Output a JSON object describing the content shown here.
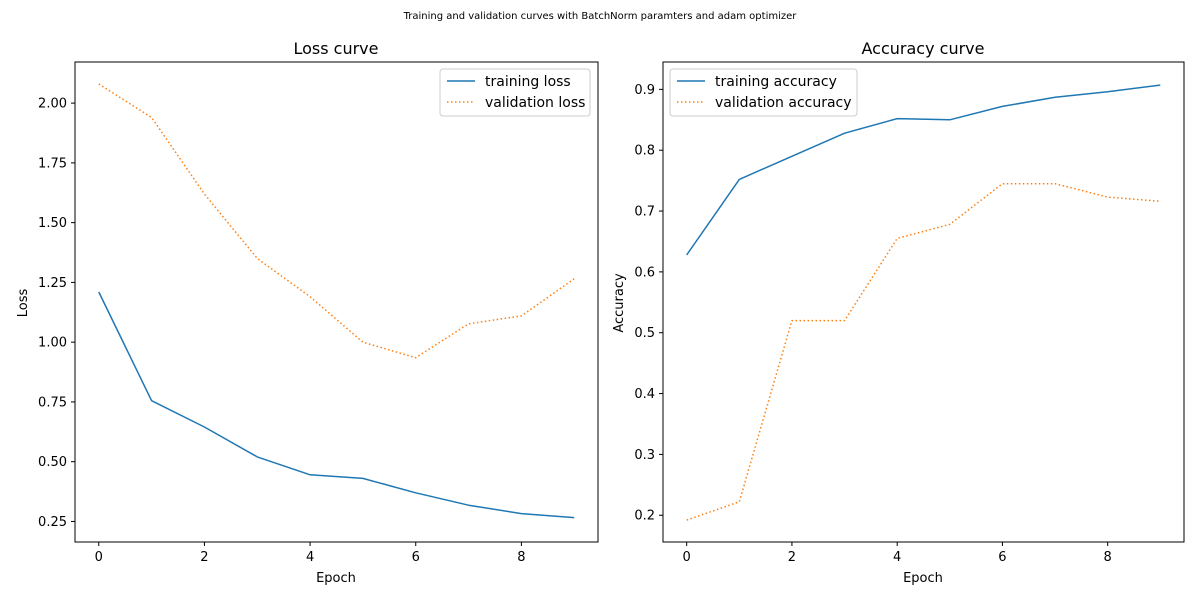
{
  "suptitle": "Training and validation curves with BatchNorm paramters and adam optimizer",
  "colors": {
    "series_0": "#1f77b4",
    "series_1": "#ff7f0e",
    "axes": "#000000",
    "legend_border": "#cccccc"
  },
  "chart_data": [
    {
      "type": "line",
      "title": "Loss curve",
      "xlabel": "Epoch",
      "ylabel": "Loss",
      "x": [
        0,
        1,
        2,
        3,
        4,
        5,
        6,
        7,
        8,
        9
      ],
      "xlim": [
        -0.45,
        9.45
      ],
      "ylim": [
        0.164,
        2.172
      ],
      "xticks": [
        0,
        2,
        4,
        6,
        8
      ],
      "xtick_labels": [
        "0",
        "2",
        "4",
        "6",
        "8"
      ],
      "yticks": [
        0.25,
        0.5,
        0.75,
        1.0,
        1.25,
        1.5,
        1.75,
        2.0
      ],
      "ytick_labels": [
        "0.25",
        "0.50",
        "0.75",
        "1.00",
        "1.25",
        "1.50",
        "1.75",
        "2.00"
      ],
      "grid": false,
      "legend_position": "upper right",
      "series": [
        {
          "name": "training loss",
          "style": "solid",
          "values": [
            1.21,
            0.755,
            0.645,
            0.52,
            0.445,
            0.43,
            0.37,
            0.318,
            0.283,
            0.266
          ]
        },
        {
          "name": "validation loss",
          "style": "dotted",
          "values": [
            2.08,
            1.94,
            1.62,
            1.35,
            1.19,
            1.0,
            0.935,
            1.077,
            1.11,
            1.265
          ]
        }
      ]
    },
    {
      "type": "line",
      "title": "Accuracy curve",
      "xlabel": "Epoch",
      "ylabel": "Accuracy",
      "x": [
        0,
        1,
        2,
        3,
        4,
        5,
        6,
        7,
        8,
        9
      ],
      "xlim": [
        -0.45,
        9.45
      ],
      "ylim": [
        0.156,
        0.945
      ],
      "xticks": [
        0,
        2,
        4,
        6,
        8
      ],
      "xtick_labels": [
        "0",
        "2",
        "4",
        "6",
        "8"
      ],
      "yticks": [
        0.2,
        0.3,
        0.4,
        0.5,
        0.6,
        0.7,
        0.8,
        0.9
      ],
      "ytick_labels": [
        "0.2",
        "0.3",
        "0.4",
        "0.5",
        "0.6",
        "0.7",
        "0.8",
        "0.9"
      ],
      "grid": false,
      "legend_position": "upper left",
      "series": [
        {
          "name": "training accuracy",
          "style": "solid",
          "values": [
            0.628,
            0.752,
            0.79,
            0.828,
            0.852,
            0.85,
            0.872,
            0.887,
            0.896,
            0.907
          ]
        },
        {
          "name": "validation accuracy",
          "style": "dotted",
          "values": [
            0.192,
            0.222,
            0.52,
            0.52,
            0.655,
            0.678,
            0.745,
            0.745,
            0.723,
            0.716
          ]
        }
      ]
    }
  ]
}
